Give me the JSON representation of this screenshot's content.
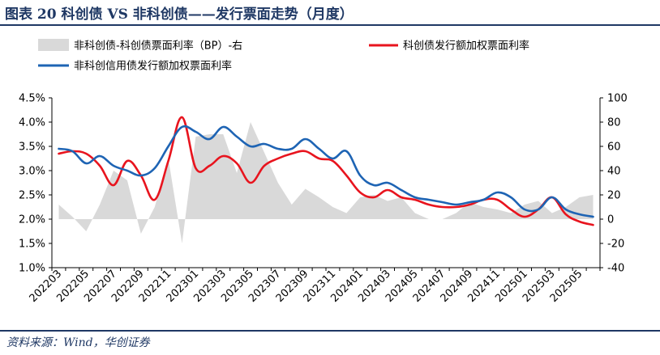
{
  "title": "图表 20   科创债 VS 非科创债——发行票面走势（月度）",
  "source": "资料来源：Wind，华创证券",
  "chart_data": {
    "type": "line",
    "x": [
      "202203",
      "202204",
      "202205",
      "202206",
      "202207",
      "202208",
      "202209",
      "202210",
      "202211",
      "202212",
      "202301",
      "202302",
      "202303",
      "202304",
      "202305",
      "202306",
      "202307",
      "202308",
      "202309",
      "202310",
      "202311",
      "202312",
      "202401",
      "202402",
      "202403",
      "202404",
      "202405",
      "202406",
      "202407",
      "202408",
      "202409",
      "202410",
      "202411",
      "202412",
      "202501",
      "202502",
      "202503",
      "202504",
      "202505",
      "202506"
    ],
    "x_tick_labels": [
      "202203",
      "202205",
      "202207",
      "202209",
      "202211",
      "202301",
      "202303",
      "202305",
      "202307",
      "202309",
      "202311",
      "202401",
      "202403",
      "202405",
      "202407",
      "202409",
      "202411",
      "202501",
      "202503",
      "202505"
    ],
    "y_left_ticks": [
      "4.5%",
      "4.0%",
      "3.5%",
      "3.0%",
      "2.5%",
      "2.0%",
      "1.5%",
      "1.0%"
    ],
    "y_left_range": [
      1.0,
      4.5
    ],
    "y_right_ticks": [
      "100",
      "80",
      "60",
      "40",
      "20",
      "0",
      "-20",
      "-40"
    ],
    "y_right_range": [
      -40,
      100
    ],
    "legend_placement": "top",
    "series": [
      {
        "name": "非科创债-科创债票面利率（BP）-右",
        "type": "area",
        "axis": "right",
        "color": "#d9d9d9",
        "values": [
          12,
          2,
          -10,
          12,
          40,
          32,
          -12,
          10,
          50,
          -20,
          68,
          70,
          70,
          38,
          80,
          55,
          30,
          12,
          25,
          18,
          10,
          5,
          18,
          20,
          15,
          18,
          5,
          0,
          0,
          5,
          14,
          10,
          8,
          5,
          12,
          15,
          5,
          10,
          18,
          20
        ]
      },
      {
        "name": "科创债发行额加权票面利率",
        "type": "line",
        "axis": "left",
        "color": "#e8141e",
        "values": [
          3.35,
          3.4,
          3.35,
          3.1,
          2.7,
          3.2,
          2.9,
          2.4,
          3.2,
          4.1,
          3.05,
          3.1,
          3.3,
          3.15,
          2.75,
          3.1,
          3.25,
          3.35,
          3.4,
          3.25,
          3.2,
          2.9,
          2.55,
          2.45,
          2.6,
          2.45,
          2.4,
          2.3,
          2.25,
          2.25,
          2.3,
          2.4,
          2.4,
          2.2,
          2.05,
          2.2,
          2.45,
          2.1,
          1.95,
          1.88
        ]
      },
      {
        "name": "非科创信用债发行额加权票面利率",
        "type": "line",
        "axis": "left",
        "color": "#1e64b4",
        "values": [
          3.45,
          3.4,
          3.15,
          3.3,
          3.1,
          3.0,
          2.9,
          3.05,
          3.5,
          3.9,
          3.8,
          3.65,
          3.9,
          3.7,
          3.5,
          3.55,
          3.45,
          3.45,
          3.65,
          3.45,
          3.25,
          3.4,
          2.9,
          2.7,
          2.75,
          2.6,
          2.45,
          2.4,
          2.35,
          2.3,
          2.35,
          2.4,
          2.55,
          2.45,
          2.2,
          2.2,
          2.45,
          2.2,
          2.1,
          2.05
        ]
      }
    ]
  }
}
